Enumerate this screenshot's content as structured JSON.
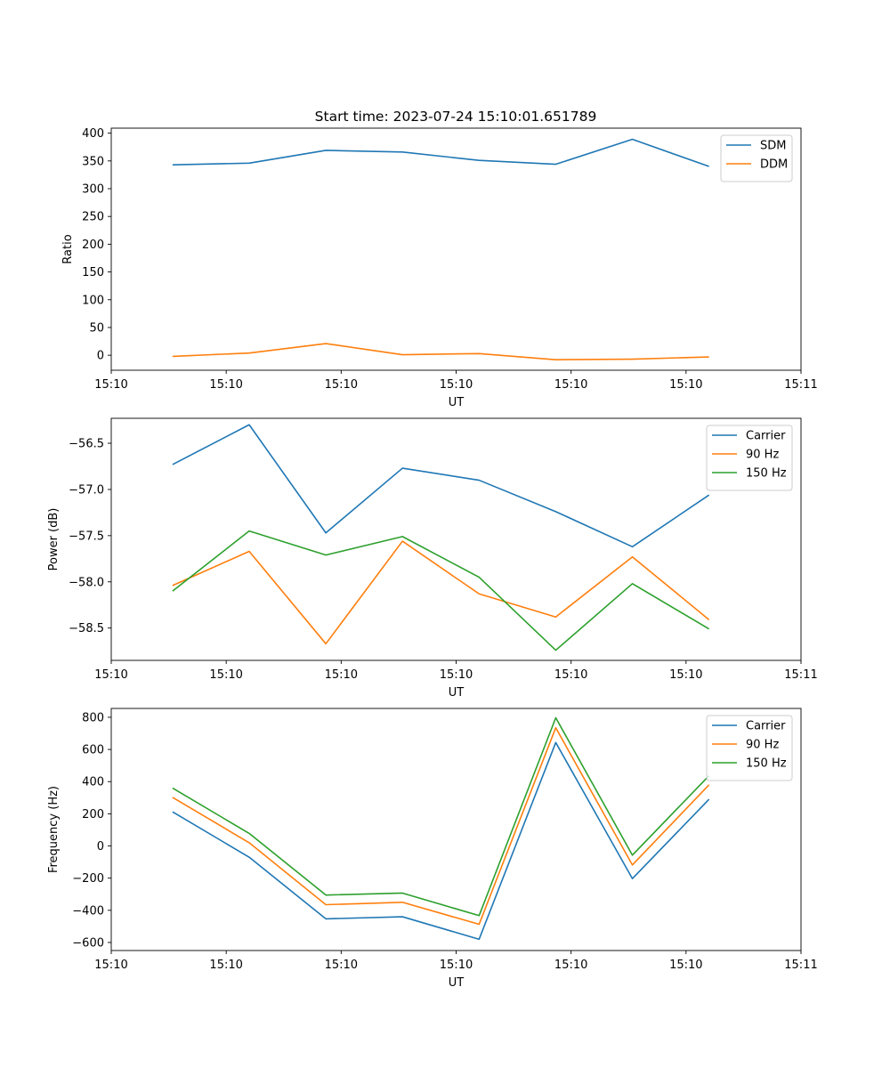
{
  "figure_title": "Start time: 2023-07-24 15:10:01.651789",
  "colors": {
    "c0": "#1f77b4",
    "c1": "#ff7f0e",
    "c2": "#2ca02c"
  },
  "chart_data": [
    {
      "type": "line",
      "title": "Start time: 2023-07-24 15:10:01.651789",
      "xlabel": "UT",
      "ylabel": "Ratio",
      "x": [
        1,
        2,
        3,
        4,
        5,
        6,
        7,
        8
      ],
      "xlim": [
        0.2,
        9.2
      ],
      "xticks": [
        0.2,
        1.7,
        3.2,
        4.7,
        6.2,
        7.7,
        9.2
      ],
      "xtick_labels": [
        "15:10",
        "15:10",
        "15:10",
        "15:10",
        "15:10",
        "15:10",
        "15:11"
      ],
      "ylim": [
        -27,
        409
      ],
      "yticks": [
        0,
        50,
        100,
        150,
        200,
        250,
        300,
        350,
        400
      ],
      "ytick_labels": [
        "0",
        "50",
        "100",
        "150",
        "200",
        "250",
        "300",
        "350",
        "400"
      ],
      "legend": "top-right",
      "series": [
        {
          "name": "SDM",
          "color": "#1f77b4",
          "values": [
            343,
            346,
            369,
            366,
            351,
            344,
            389,
            340
          ]
        },
        {
          "name": "DDM",
          "color": "#ff7f0e",
          "values": [
            -2,
            4,
            21,
            1,
            3,
            -8,
            -7,
            -3
          ]
        }
      ]
    },
    {
      "type": "line",
      "title": "",
      "xlabel": "UT",
      "ylabel": "Power (dB)",
      "x": [
        1,
        2,
        3,
        4,
        5,
        6,
        7,
        8
      ],
      "xlim": [
        0.2,
        9.2
      ],
      "xticks": [
        0.2,
        1.7,
        3.2,
        4.7,
        6.2,
        7.7,
        9.2
      ],
      "xtick_labels": [
        "15:10",
        "15:10",
        "15:10",
        "15:10",
        "15:10",
        "15:10",
        "15:11"
      ],
      "ylim": [
        -58.85,
        -56.23
      ],
      "yticks": [
        -58.5,
        -58.0,
        -57.5,
        -57.0,
        -56.5
      ],
      "ytick_labels": [
        "−58.5",
        "−58.0",
        "−57.5",
        "−57.0",
        "−56.5"
      ],
      "legend": "top-right",
      "series": [
        {
          "name": "Carrier",
          "color": "#1f77b4",
          "values": [
            -56.73,
            -56.3,
            -57.47,
            -56.77,
            -56.9,
            -57.24,
            -57.62,
            -57.06
          ]
        },
        {
          "name": "90 Hz",
          "color": "#ff7f0e",
          "values": [
            -58.04,
            -57.67,
            -58.67,
            -57.56,
            -58.13,
            -58.38,
            -57.73,
            -58.41
          ]
        },
        {
          "name": "150 Hz",
          "color": "#2ca02c",
          "values": [
            -58.1,
            -57.45,
            -57.71,
            -57.51,
            -57.95,
            -58.74,
            -58.02,
            -58.51
          ]
        }
      ]
    },
    {
      "type": "line",
      "title": "",
      "xlabel": "UT",
      "ylabel": "Frequency (Hz)",
      "x": [
        1,
        2,
        3,
        4,
        5,
        6,
        7,
        8
      ],
      "xlim": [
        0.2,
        9.2
      ],
      "xticks": [
        0.2,
        1.7,
        3.2,
        4.7,
        6.2,
        7.7,
        9.2
      ],
      "xtick_labels": [
        "15:10",
        "15:10",
        "15:10",
        "15:10",
        "15:10",
        "15:10",
        "15:11"
      ],
      "ylim": [
        -650,
        855
      ],
      "yticks": [
        -600,
        -400,
        -200,
        0,
        200,
        400,
        600,
        800
      ],
      "ytick_labels": [
        "−600",
        "−400",
        "−200",
        "0",
        "200",
        "400",
        "600",
        "800"
      ],
      "legend": "top-right",
      "series": [
        {
          "name": "Carrier",
          "color": "#1f77b4",
          "values": [
            212,
            -70,
            -453,
            -440,
            -580,
            643,
            -203,
            290
          ]
        },
        {
          "name": "90 Hz",
          "color": "#ff7f0e",
          "values": [
            302,
            20,
            -365,
            -350,
            -487,
            735,
            -118,
            380
          ]
        },
        {
          "name": "150 Hz",
          "color": "#2ca02c",
          "values": [
            360,
            78,
            -305,
            -293,
            -433,
            797,
            -57,
            437
          ]
        }
      ]
    }
  ]
}
